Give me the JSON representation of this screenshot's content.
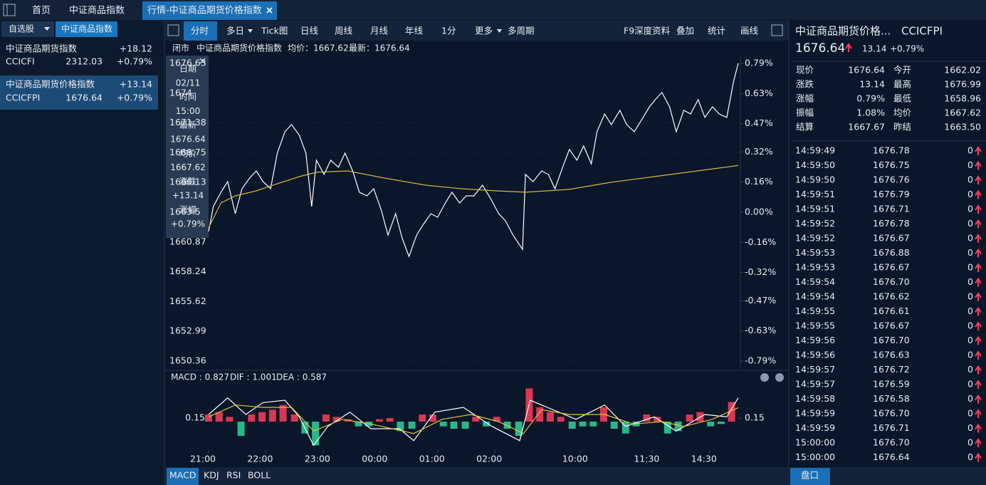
{
  "tabs": [
    "首页",
    "中证商品指数",
    "行情-中证商品期货价格指数"
  ],
  "left": {
    "tabs": [
      "自选股",
      "中证商品指数"
    ],
    "items": [
      {
        "name": "中证商品期货指数",
        "change": "+18.12",
        "code": "CCICFI",
        "price": "2312.03",
        "pct": "+0.79%"
      },
      {
        "name": "中证商品期货价格指数",
        "change": "+13.14",
        "code": "CCICFPI",
        "price": "1676.64",
        "pct": "+0.79%"
      }
    ]
  },
  "toolbar": {
    "left": [
      "分时",
      "多日",
      "Tick图",
      "日线",
      "周线",
      "月线",
      "年线",
      "1分",
      "更多",
      "多周期"
    ],
    "right": [
      "F9深度资料",
      "叠加",
      "统计",
      "画线"
    ]
  },
  "info": [
    "闭市",
    "中证商品期货价格指数",
    "均价：1667.62",
    "最新：1676.64"
  ],
  "tooltip": [
    "日期",
    "02/11",
    "时间",
    "15:00",
    "最新",
    "1676.64",
    "均价",
    "1667.62",
    "涨跌",
    "+13.14",
    "涨幅",
    "+0.79%"
  ],
  "chart_data": [
    {
      "type": "line",
      "series": [
        {
          "color": "#ffffff",
          "x": [
            0,
            5,
            13,
            20,
            28,
            35,
            43,
            50,
            57,
            65,
            72,
            80,
            87,
            95,
            102,
            108,
            113,
            121,
            128,
            136,
            143,
            151,
            158,
            166,
            173,
            181,
            188,
            196,
            203,
            210,
            218,
            225,
            233,
            240,
            248,
            255,
            263,
            270,
            278,
            287,
            296,
            304,
            311,
            319,
            329,
            332,
            340,
            349,
            356,
            363,
            371,
            378,
            386,
            393,
            401,
            407,
            415,
            422,
            431,
            438,
            446,
            453,
            462,
            468,
            475,
            483,
            490,
            498,
            505,
            513,
            520,
            528,
            535,
            543,
            550,
            555
          ],
          "values": [
            1661.8,
            1664.0,
            1665.26,
            1666.2,
            1663.37,
            1665.57,
            1666.51,
            1667.14,
            1666.2,
            1665.57,
            1668.71,
            1670.6,
            1671.23,
            1670.29,
            1668.71,
            1664.0,
            1668.09,
            1666.83,
            1668.09,
            1667.46,
            1668.71,
            1667.14,
            1665.26,
            1664.94,
            1665.57,
            1663.68,
            1661.48,
            1663.37,
            1661.17,
            1659.59,
            1661.48,
            1662.42,
            1663.37,
            1663.05,
            1664.31,
            1665.26,
            1664.31,
            1664.94,
            1664.94,
            1665.88,
            1664.63,
            1663.37,
            1662.74,
            1661.48,
            1660.22,
            1666.83,
            1666.2,
            1667.14,
            1666.83,
            1665.57,
            1667.46,
            1669.03,
            1668.09,
            1669.34,
            1667.77,
            1670.6,
            1672.17,
            1671.23,
            1672.49,
            1671.23,
            1670.6,
            1671.55,
            1672.8,
            1673.43,
            1674.06,
            1672.8,
            1670.6,
            1672.49,
            1672.17,
            1673.43,
            1671.86,
            1672.8,
            1672.17,
            1671.86,
            1675.0,
            1676.64
          ]
        },
        {
          "color": "#d8b34a",
          "x": [
            0,
            13,
            28,
            50,
            72,
            95,
            113,
            146,
            184,
            228,
            265,
            302,
            332,
            378,
            422,
            467,
            512,
            555
          ],
          "values": [
            1662.11,
            1664.31,
            1664.94,
            1665.38,
            1666.01,
            1666.64,
            1667.02,
            1667.14,
            1666.51,
            1665.88,
            1665.57,
            1665.38,
            1665.26,
            1665.51,
            1666.14,
            1666.64,
            1667.14,
            1667.62
          ]
        }
      ],
      "xlim": [
        0,
        555
      ],
      "xticks": [
        {
          "value": 0,
          "label": "21:00"
        },
        {
          "value": 60,
          "label": "22:00"
        },
        {
          "value": 120,
          "label": "23:00"
        },
        {
          "value": 180,
          "label": "00:00"
        },
        {
          "value": 240,
          "label": "01:00"
        },
        {
          "value": 300,
          "label": "02:00"
        },
        {
          "value": 390,
          "label": "10:00"
        },
        {
          "value": 465,
          "label": "11:30"
        },
        {
          "value": 525,
          "label": "14:30"
        }
      ],
      "ylim": [
        1650.36,
        1676.63
      ],
      "yticks": [
        1676.63,
        1674.0,
        1671.38,
        1668.75,
        1666.13,
        1663.5,
        1660.87,
        1658.24,
        1655.62,
        1652.99,
        1650.36
      ],
      "y2lim": [
        -0.79,
        0.79
      ],
      "y2ticks": [
        {
          "value": 0.79,
          "label": "0.79%"
        },
        {
          "value": 0.63,
          "label": "0.63%"
        },
        {
          "value": 0.47,
          "label": "0.47%"
        },
        {
          "value": 0.32,
          "label": "0.32%"
        },
        {
          "value": 0.16,
          "label": "0.16%"
        },
        {
          "value": 0,
          "label": "0.00%"
        },
        {
          "value": -0.16,
          "label": "-0.16%"
        },
        {
          "value": -0.32,
          "label": "-0.32%"
        },
        {
          "value": -0.47,
          "label": "-0.47%"
        },
        {
          "value": -0.63,
          "label": "-0.63%"
        },
        {
          "value": -0.79,
          "label": "-0.79%"
        }
      ],
      "up_color": "#ff3d5a",
      "down_color": "#3cc47c",
      "grid": true
    },
    {
      "type": "macd",
      "legend": [
        "MACD : 0.827",
        "DIF : 1.001",
        "DEA : 0.587"
      ],
      "series": [
        {
          "name": "MACD",
          "kind": "bar",
          "color": "#e070e0",
          "up_color": "#ff3d5a",
          "down_color": "#2fd39a",
          "x": [
            0,
            11,
            22,
            34,
            45,
            56,
            67,
            78,
            90,
            101,
            112,
            123,
            134,
            146,
            157,
            168,
            179,
            190,
            201,
            213,
            224,
            235,
            246,
            257,
            269,
            280,
            291,
            302,
            313,
            325,
            336,
            347,
            358,
            369,
            381,
            392,
            403,
            414,
            425,
            437,
            448,
            459,
            470,
            481,
            492,
            504,
            515,
            526,
            537,
            548
          ],
          "values": [
            0.3,
            0.4,
            0.2,
            -0.6,
            0.3,
            0.4,
            0.5,
            0.7,
            0.3,
            -0.5,
            -1.0,
            0.3,
            0.2,
            0.1,
            -0.2,
            -0.2,
            0.1,
            0.15,
            -0.4,
            -0.3,
            0.3,
            0.3,
            -0.2,
            -0.3,
            -0.3,
            0.2,
            -0.2,
            0.2,
            -0.3,
            -0.6,
            1.4,
            0.6,
            0.4,
            0.2,
            -0.3,
            -0.2,
            -0.2,
            0.6,
            -0.3,
            -0.5,
            -0.2,
            0.3,
            0.2,
            -0.5,
            -0.4,
            0.3,
            0.4,
            -0.2,
            -0.1,
            0.827
          ]
        },
        {
          "name": "DIF",
          "kind": "line",
          "color": "#ffffff",
          "x": [
            0,
            20,
            39,
            57,
            80,
            95,
            110,
            125,
            148,
            170,
            200,
            215,
            237,
            267,
            297,
            326,
            337,
            355,
            385,
            415,
            437,
            467,
            490,
            520,
            543,
            555
          ],
          "values": [
            0.3,
            1.0,
            0.3,
            0.8,
            0.9,
            0.2,
            -1.0,
            -0.2,
            0.4,
            -0.3,
            -0.3,
            -0.8,
            0.4,
            0.6,
            -0.2,
            -0.8,
            0.9,
            0.6,
            0.1,
            0.7,
            -0.2,
            0.2,
            -0.4,
            0.3,
            0.2,
            1.001
          ]
        },
        {
          "name": "DEA",
          "kind": "line",
          "color": "#e3c23a",
          "x": [
            0,
            28,
            57,
            87,
            110,
            140,
            170,
            215,
            245,
            275,
            304,
            330,
            349,
            378,
            415,
            445,
            475,
            498,
            528,
            555
          ],
          "values": [
            0.2,
            0.7,
            0.6,
            0.6,
            -0.4,
            0.1,
            -0.1,
            -0.5,
            0.1,
            0.3,
            0.0,
            -0.5,
            0.5,
            0.3,
            0.3,
            -0.1,
            0.0,
            -0.2,
            0.1,
            0.587
          ]
        }
      ],
      "xlim": [
        0,
        555
      ],
      "ylim": [
        -1.2,
        1.56
      ],
      "yticks": [
        0.15
      ]
    }
  ],
  "indicator_tabs": [
    "MACD",
    "KDJ",
    "RSI",
    "BOLL"
  ],
  "quote": {
    "name": "中证商品期货价格...",
    "code": "CCICFPI",
    "price": "1676.64",
    "change": "13.14",
    "pct": "+0.79%"
  },
  "stats": [
    {
      "label": "现价",
      "value": "1676.64",
      "color": "#ff3d5a"
    },
    {
      "label": "今开",
      "value": "1662.02",
      "color": "#3cc47c"
    },
    {
      "label": "涨跌",
      "value": "13.14",
      "color": "#ff3d5a"
    },
    {
      "label": "最高",
      "value": "1676.99",
      "color": "#ff3d5a"
    },
    {
      "label": "涨幅",
      "value": "0.79%",
      "color": "#ff3d5a"
    },
    {
      "label": "最低",
      "value": "1658.96",
      "color": "#3cc47c"
    },
    {
      "label": "振幅",
      "value": "1.08%",
      "color": "#ffffff"
    },
    {
      "label": "均价",
      "value": "1667.62",
      "color": "#ff3d5a"
    },
    {
      "label": "结算",
      "value": "1667.67",
      "color": "#ff3d5a"
    },
    {
      "label": "昨结",
      "value": "1663.50",
      "color": "#ffffff"
    }
  ],
  "trades": [
    [
      "14:59:49",
      "1676.78",
      "0"
    ],
    [
      "14:59:50",
      "1676.75",
      "0"
    ],
    [
      "14:59:50",
      "1676.76",
      "0"
    ],
    [
      "14:59:51",
      "1676.79",
      "0"
    ],
    [
      "14:59:51",
      "1676.71",
      "0"
    ],
    [
      "14:59:52",
      "1676.78",
      "0"
    ],
    [
      "14:59:52",
      "1676.67",
      "0"
    ],
    [
      "14:59:53",
      "1676.88",
      "0"
    ],
    [
      "14:59:53",
      "1676.67",
      "0"
    ],
    [
      "14:59:54",
      "1676.70",
      "0"
    ],
    [
      "14:59:54",
      "1676.62",
      "0"
    ],
    [
      "14:59:55",
      "1676.61",
      "0"
    ],
    [
      "14:59:55",
      "1676.67",
      "0"
    ],
    [
      "14:59:56",
      "1676.70",
      "0"
    ],
    [
      "14:59:56",
      "1676.63",
      "0"
    ],
    [
      "14:59:57",
      "1676.72",
      "0"
    ],
    [
      "14:59:57",
      "1676.59",
      "0"
    ],
    [
      "14:59:58",
      "1676.58",
      "0"
    ],
    [
      "14:59:59",
      "1676.70",
      "0"
    ],
    [
      "14:59:59",
      "1676.71",
      "0"
    ],
    [
      "15:00:00",
      "1676.70",
      "0"
    ],
    [
      "15:00:00",
      "1676.64",
      "0"
    ]
  ],
  "bottom_tab": "盘口"
}
